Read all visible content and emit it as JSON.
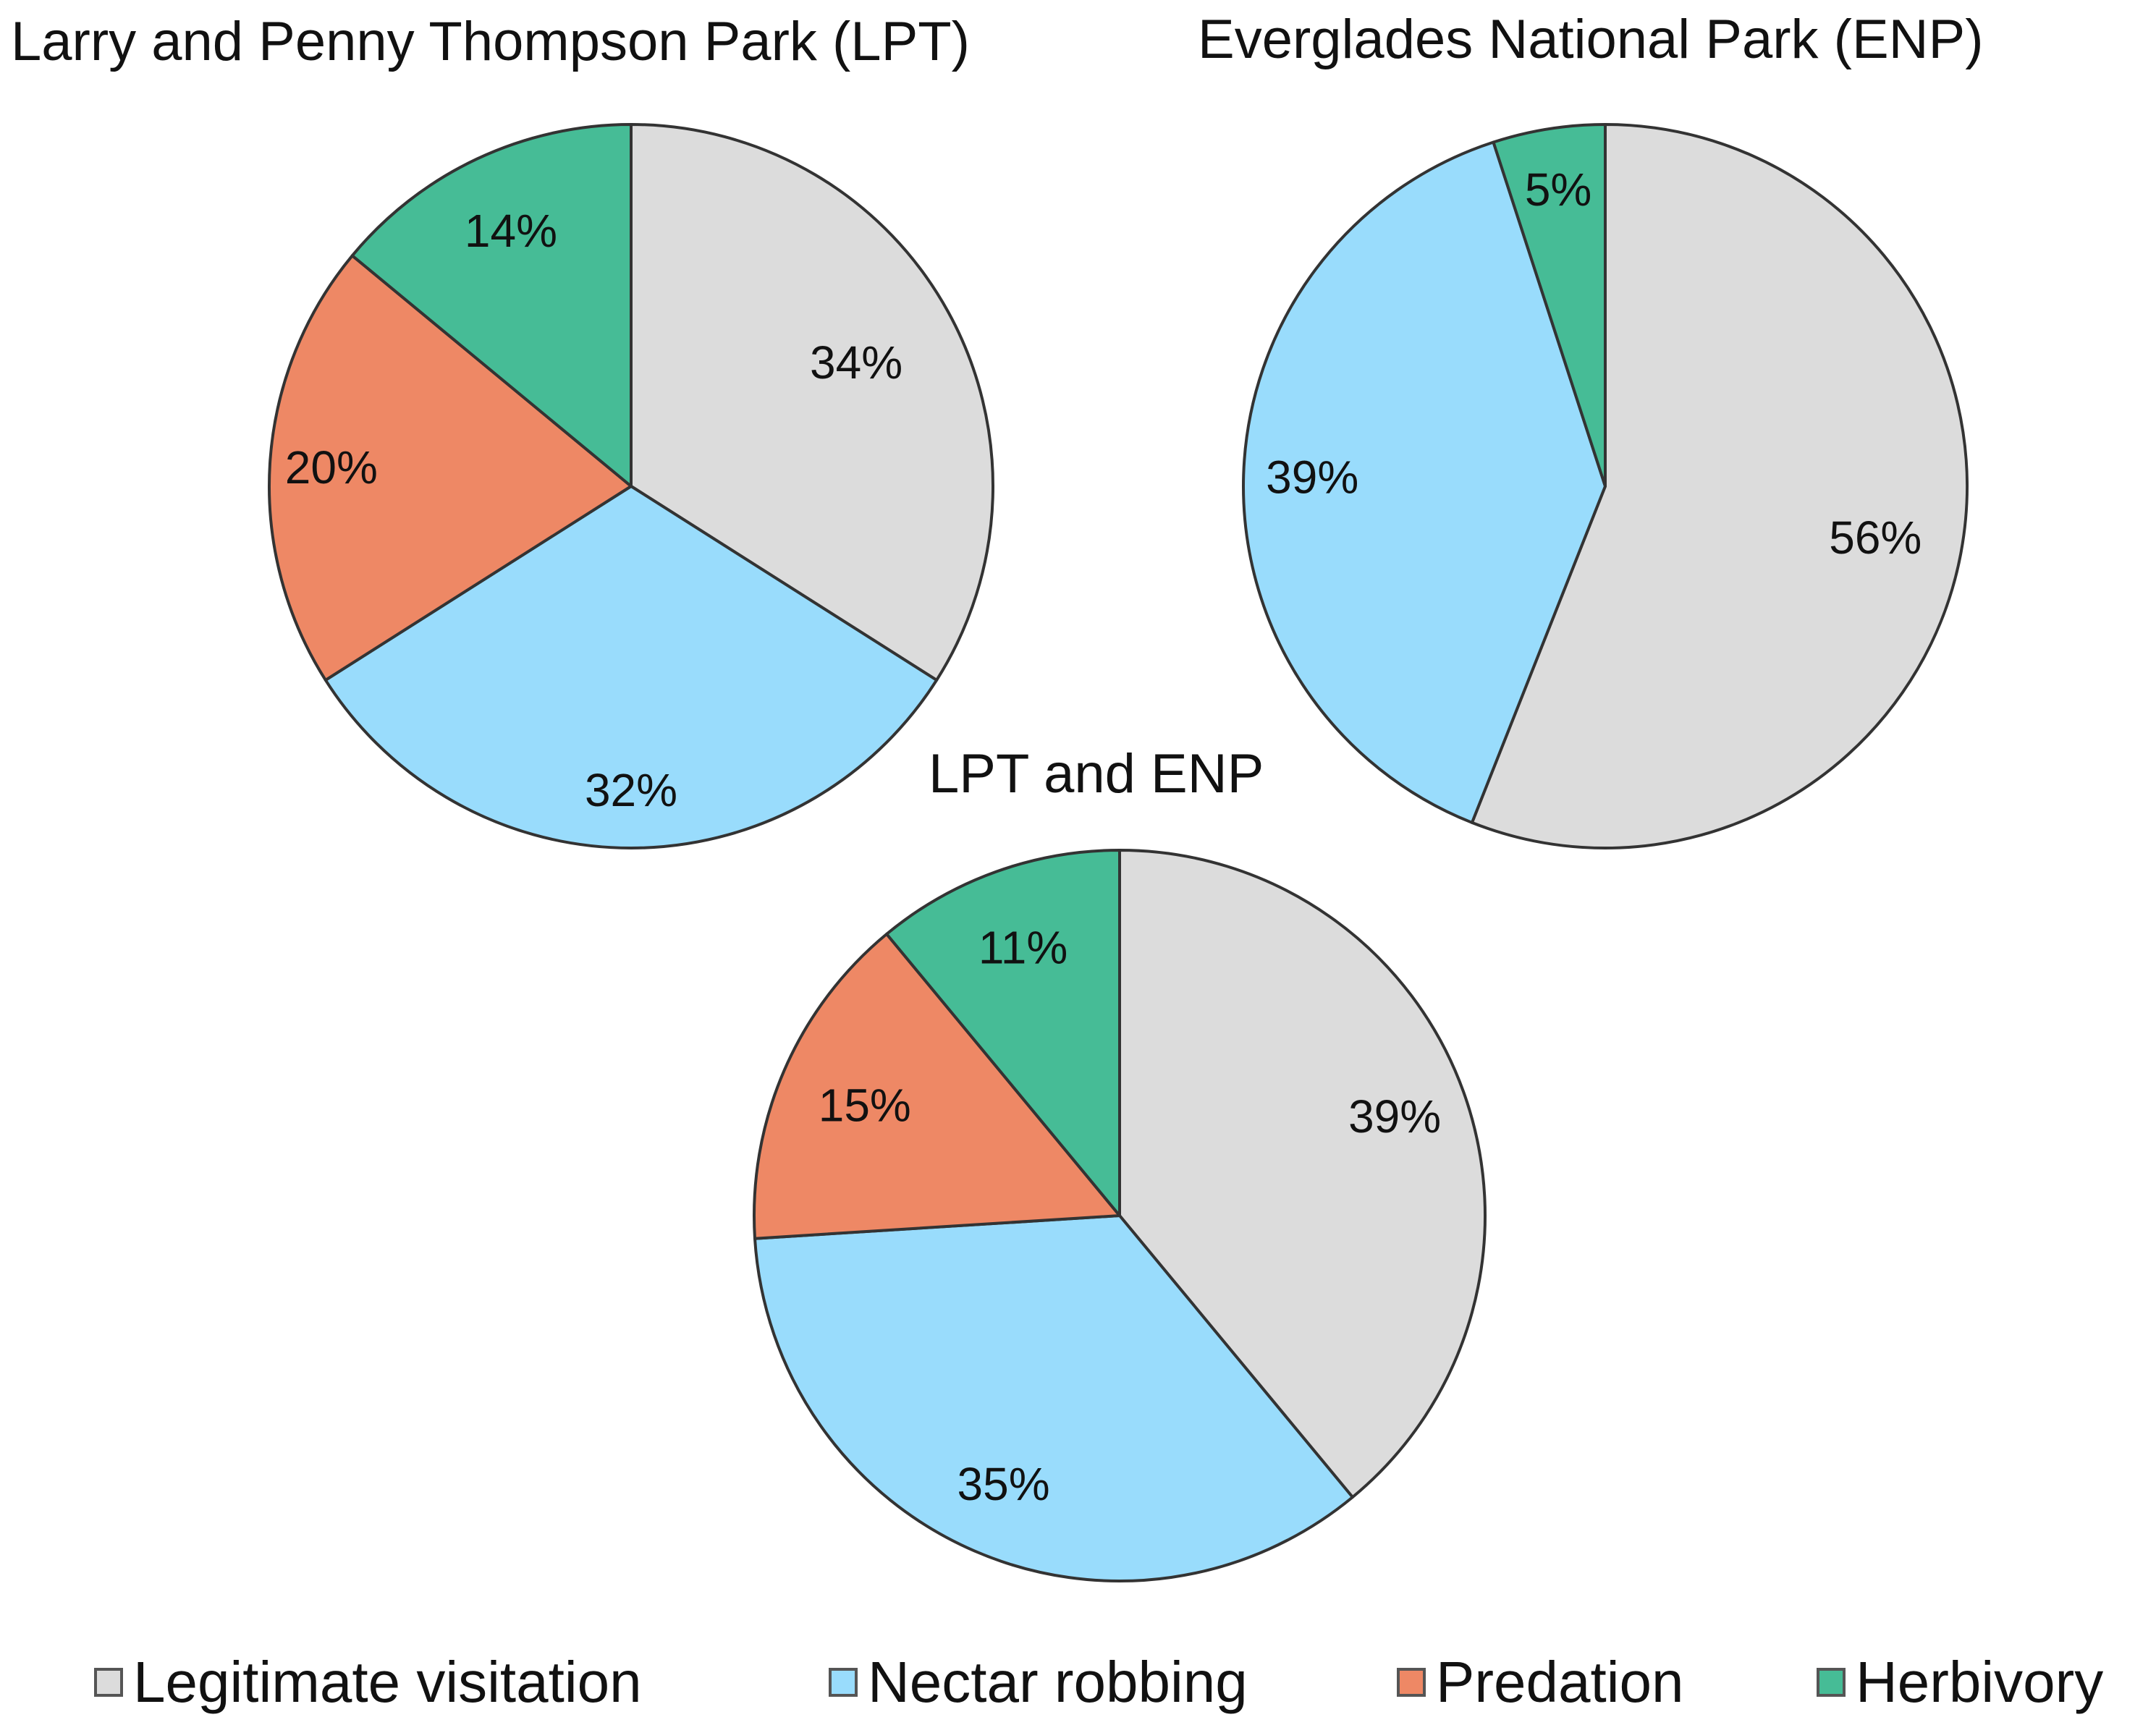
{
  "chart_data": [
    {
      "type": "pie",
      "title": "Larry and Penny Thompson Park (LPT)",
      "categories": [
        "Legitimate visitation",
        "Nectar robbing",
        "Predation",
        "Herbivory"
      ],
      "values": [
        34,
        32,
        20,
        14
      ],
      "labels": [
        "34%",
        "32%",
        "20%",
        "14%"
      ]
    },
    {
      "type": "pie",
      "title": "Everglades National Park (ENP)",
      "categories": [
        "Legitimate visitation",
        "Nectar robbing",
        "Predation",
        "Herbivory"
      ],
      "values": [
        56,
        39,
        0,
        5
      ],
      "labels": [
        "56%",
        "39%",
        "",
        "5%"
      ]
    },
    {
      "type": "pie",
      "title": "LPT and ENP",
      "categories": [
        "Legitimate visitation",
        "Nectar robbing",
        "Predation",
        "Herbivory"
      ],
      "values": [
        39,
        35,
        15,
        11
      ],
      "labels": [
        "39%",
        "35%",
        "15%",
        "11%"
      ]
    }
  ],
  "legend": {
    "items": [
      {
        "label": "Legitimate visitation",
        "color": "#dcdcdc"
      },
      {
        "label": "Nectar robbing",
        "color": "#99dcfc"
      },
      {
        "label": "Predation",
        "color": "#ee8865"
      },
      {
        "label": "Herbivory",
        "color": "#46bc96"
      }
    ]
  }
}
